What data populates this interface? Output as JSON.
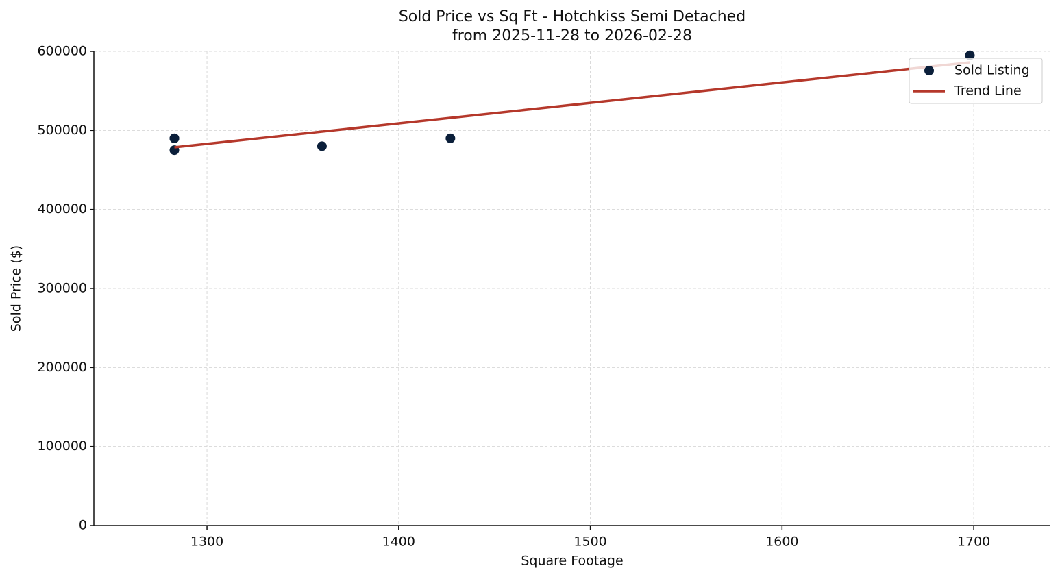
{
  "chart_data": {
    "type": "scatter",
    "title": "Sold Price vs Sq Ft - Hotchkiss Semi Detached",
    "subtitle": "from 2025-11-28 to 2026-02-28",
    "x_label": "Square Footage",
    "y_label": "Sold Price ($)",
    "series": [
      {
        "name": "Sold Listing",
        "type": "scatter",
        "color": "#0b1f3a",
        "x": [
          1283,
          1283,
          1283,
          1360,
          1427,
          1698
        ],
        "values": [
          490000,
          490000,
          475000,
          480000,
          490000,
          595000
        ]
      },
      {
        "name": "Trend Line",
        "type": "line",
        "color": "#b5382b",
        "x": [
          1283,
          1698
        ],
        "values": [
          478600,
          586100
        ]
      }
    ],
    "xlim": [
      1241,
      1740
    ],
    "xticks": [
      1300,
      1400,
      1500,
      1600,
      1700
    ],
    "ylim": [
      0,
      600000
    ],
    "yticks": [
      0,
      100000,
      200000,
      300000,
      400000,
      500000,
      600000
    ],
    "grid": true,
    "legend": "upper right"
  }
}
